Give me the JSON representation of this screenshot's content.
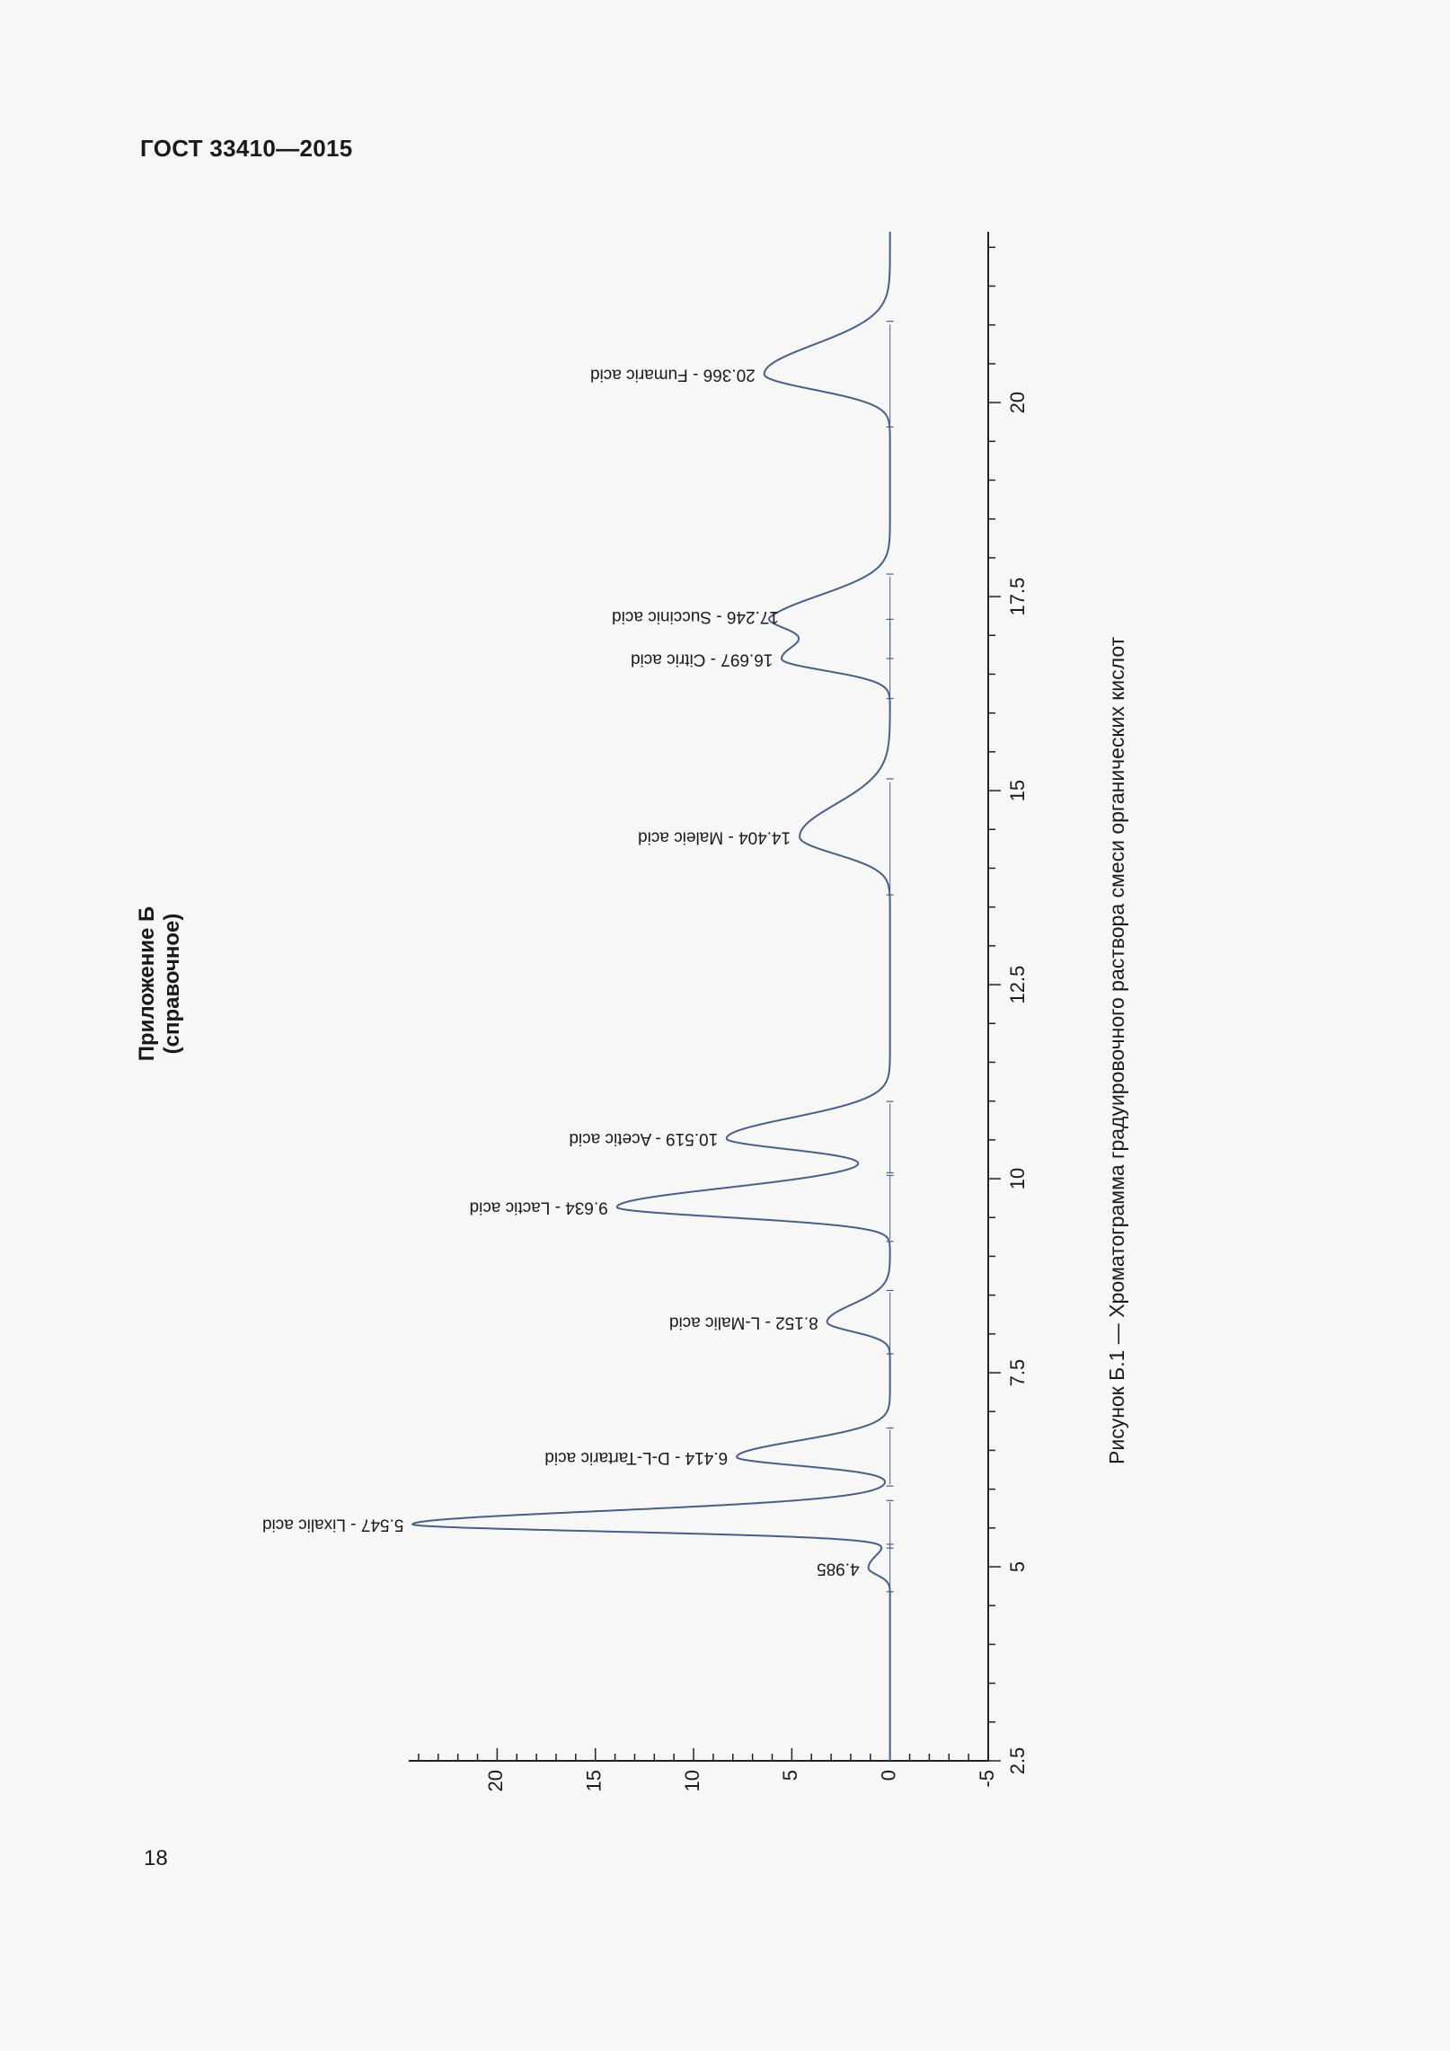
{
  "document": {
    "header": "ГОСТ 33410—2015",
    "appendix_title": "Приложение Б",
    "appendix_note": "(справочное)",
    "figure_caption": "Рисунок Б.1 — Хроматограмма градуировочного раствора смеси органических кислот",
    "page_number": "18"
  },
  "chart_data": {
    "type": "line",
    "title": "",
    "xlabel": "",
    "ylabel": "",
    "x_ticks": [
      "2.5",
      "5",
      "7.5",
      "10",
      "12.5",
      "15",
      "17.5",
      "20"
    ],
    "y_ticks": [
      "-5",
      "0",
      "5",
      "10",
      "15",
      "20"
    ],
    "xlim": [
      2.5,
      22.2
    ],
    "ylim": [
      -5,
      24.5
    ],
    "orientation": "rotated-90-clockwise",
    "line_color": "#4a5f85",
    "peaks": [
      {
        "rt": 4.985,
        "height": 1.1,
        "width": 0.09,
        "label": "4.985"
      },
      {
        "rt": 5.547,
        "height": 24.3,
        "width": 0.09,
        "label": "5.547 - Lixalic acid"
      },
      {
        "rt": 6.414,
        "height": 7.8,
        "width": 0.11,
        "label": "6.414 - D-L-Tartaric acid"
      },
      {
        "rt": 8.152,
        "height": 3.2,
        "width": 0.12,
        "label": "8.152 - L-Malic acid"
      },
      {
        "rt": 9.634,
        "height": 13.9,
        "width": 0.13,
        "label": "9.634 - Lactic acid"
      },
      {
        "rt": 10.519,
        "height": 8.3,
        "width": 0.14,
        "label": "10.519 - Acetic acid"
      },
      {
        "rt": 14.404,
        "height": 4.6,
        "width": 0.22,
        "label": "14.404 - Maleic acid"
      },
      {
        "rt": 16.697,
        "height": 5.5,
        "width": 0.15,
        "label": "16.697 - Citric acid"
      },
      {
        "rt": 17.246,
        "height": 5.2,
        "width": 0.16,
        "label": "17.246 - Succinic acid"
      },
      {
        "rt": 20.366,
        "height": 6.4,
        "width": 0.2,
        "label": "20.366 - Fumaric acid"
      }
    ]
  }
}
